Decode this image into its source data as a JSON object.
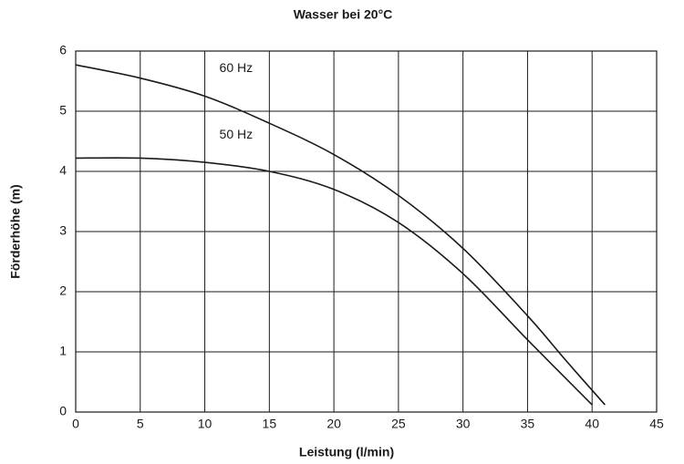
{
  "chart_data": {
    "type": "line",
    "title": "Wasser bei 20°C",
    "x_label": "Leistung (l/min)",
    "y_label": "Förderhöhe (m)",
    "series": [
      {
        "name": "60 Hz",
        "color": "#1a1a1a",
        "x": [
          0,
          5,
          10,
          15,
          20,
          25,
          30,
          35,
          38,
          41
        ],
        "values": [
          5.77,
          5.55,
          5.25,
          4.8,
          4.28,
          3.6,
          2.72,
          1.6,
          0.85,
          0.12
        ]
      },
      {
        "name": "50 Hz",
        "color": "#1a1a1a",
        "x": [
          0,
          5,
          10,
          15,
          20,
          25,
          30,
          35,
          40
        ],
        "values": [
          4.22,
          4.22,
          4.15,
          4.0,
          3.7,
          3.15,
          2.3,
          1.2,
          0.12
        ]
      }
    ],
    "xlim": [
      0,
      45
    ],
    "xticks": [
      0,
      5,
      10,
      15,
      20,
      25,
      30,
      35,
      40,
      45
    ],
    "ylim": [
      0,
      6
    ],
    "yticks": [
      0,
      1,
      2,
      3,
      4,
      5,
      6
    ],
    "grid": true
  }
}
